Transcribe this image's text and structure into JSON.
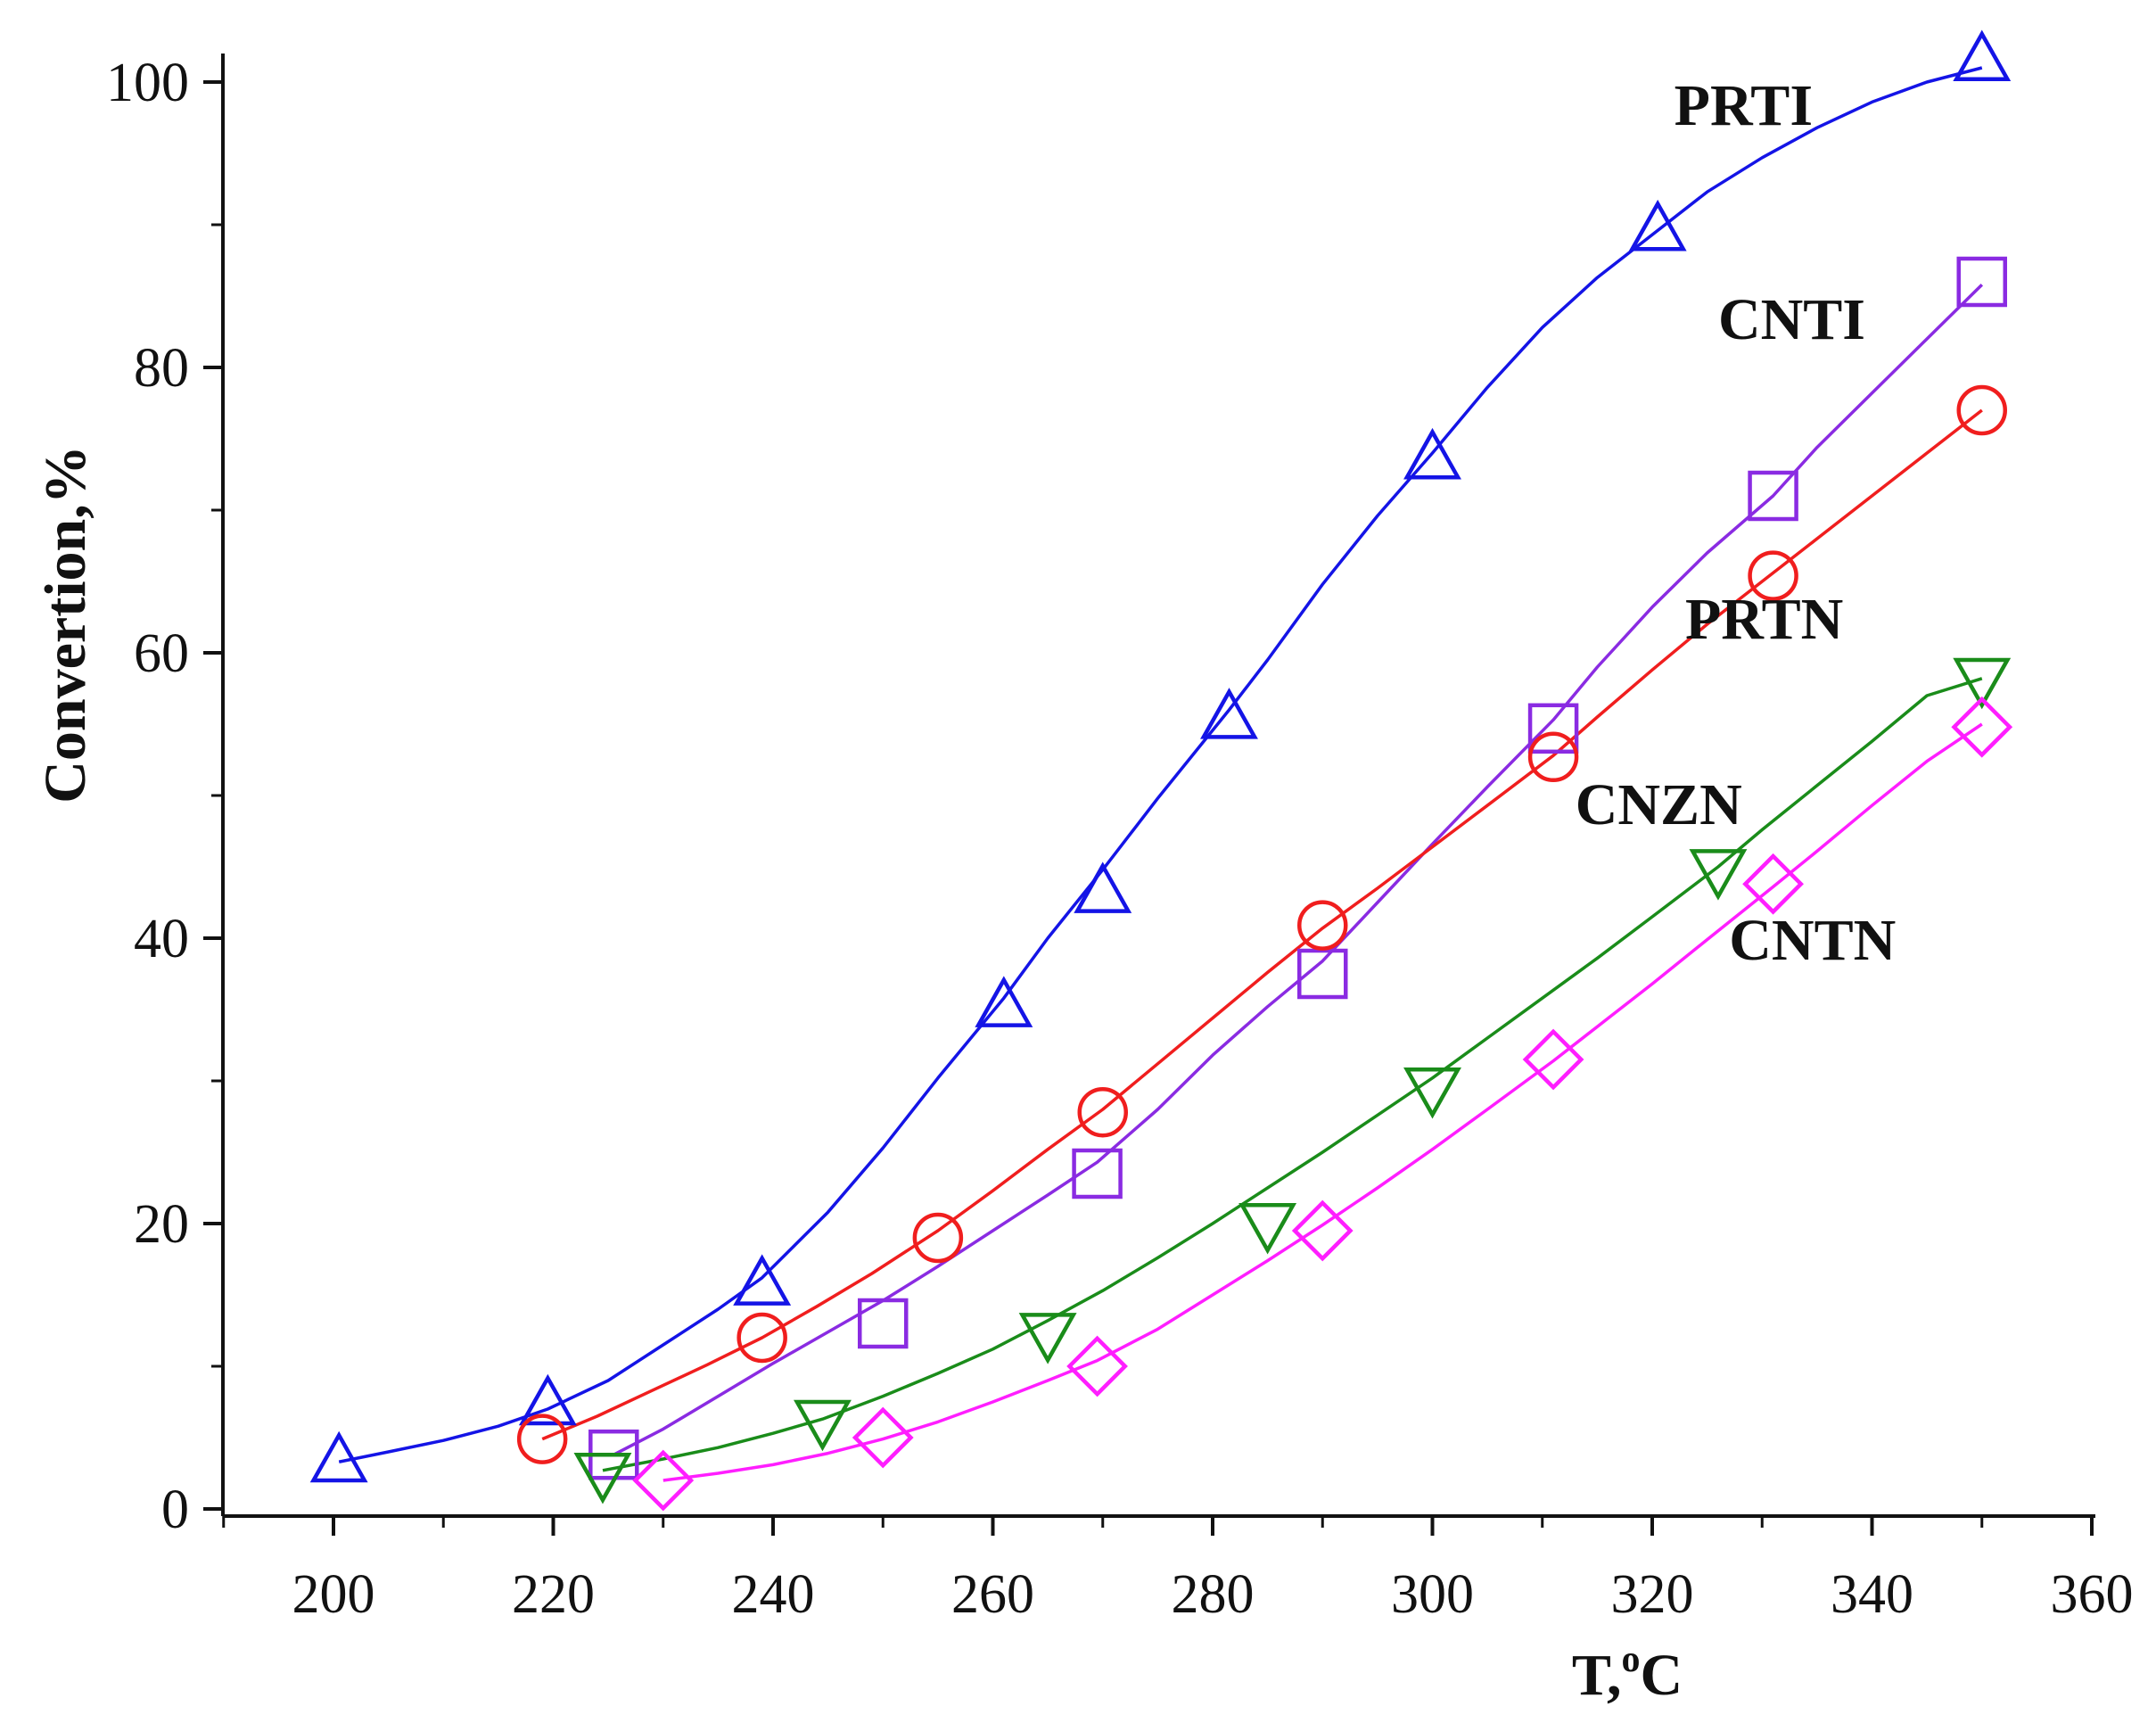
{
  "chart_data": {
    "type": "line",
    "title": "",
    "xlabel": "T,",
    "xlabel_sup": "o",
    "xlabel_unit": "C",
    "ylabel": "Convertion,%",
    "xlim": [
      190,
      360
    ],
    "ylim": [
      -2,
      105
    ],
    "x_ticks": [
      200,
      220,
      240,
      260,
      280,
      300,
      320,
      340,
      360
    ],
    "x_minor_ticks": [
      190,
      210,
      230,
      250,
      270,
      290,
      310,
      330,
      350
    ],
    "y_ticks": [
      0,
      20,
      40,
      60,
      80,
      100
    ],
    "y_minor_ticks": [
      10,
      30,
      50,
      70,
      90
    ],
    "grid": false,
    "series": [
      {
        "name": "PRTI",
        "color": "#1414e6",
        "marker": "triangle-up",
        "label_at": [
          322,
          97
        ],
        "points": [
          [
            200.5,
            3.3
          ],
          [
            219.5,
            7.3
          ],
          [
            239,
            15.7
          ],
          [
            261,
            35.2
          ],
          [
            270,
            43.2
          ],
          [
            281.5,
            55.4
          ],
          [
            300,
            73.6
          ],
          [
            320.5,
            89.6
          ],
          [
            350,
            101.5
          ]
        ],
        "curve": [
          [
            200.5,
            3.3
          ],
          [
            205,
            4.0
          ],
          [
            210,
            4.8
          ],
          [
            215,
            5.8
          ],
          [
            219.5,
            7.0
          ],
          [
            225,
            9.0
          ],
          [
            230,
            11.5
          ],
          [
            235,
            14.0
          ],
          [
            239,
            16.2
          ],
          [
            245,
            20.8
          ],
          [
            250,
            25.3
          ],
          [
            255,
            30.2
          ],
          [
            261,
            35.8
          ],
          [
            265,
            40.0
          ],
          [
            270,
            44.8
          ],
          [
            275,
            49.8
          ],
          [
            281.5,
            56.0
          ],
          [
            285,
            59.5
          ],
          [
            290,
            64.8
          ],
          [
            295,
            69.6
          ],
          [
            300,
            74.0
          ],
          [
            305,
            78.6
          ],
          [
            310,
            82.8
          ],
          [
            315,
            86.3
          ],
          [
            320.5,
            89.6
          ],
          [
            325,
            92.3
          ],
          [
            330,
            94.7
          ],
          [
            335,
            96.8
          ],
          [
            340,
            98.6
          ],
          [
            345,
            100.0
          ],
          [
            350,
            101.0
          ]
        ]
      },
      {
        "name": "CNTI",
        "color": "#8a2be2",
        "marker": "square",
        "label_at": [
          326,
          82
        ],
        "points": [
          [
            225.5,
            3.8
          ],
          [
            250,
            13.0
          ],
          [
            269.5,
            23.5
          ],
          [
            290,
            37.5
          ],
          [
            311,
            54.7
          ],
          [
            331,
            71.0
          ],
          [
            350,
            86.0
          ]
        ],
        "curve": [
          [
            225.5,
            3.8
          ],
          [
            230,
            5.6
          ],
          [
            235,
            7.9
          ],
          [
            240,
            10.2
          ],
          [
            245,
            12.4
          ],
          [
            250,
            14.6
          ],
          [
            255,
            17.0
          ],
          [
            260,
            19.5
          ],
          [
            265,
            22.0
          ],
          [
            269.5,
            24.3
          ],
          [
            275,
            28.0
          ],
          [
            280,
            31.8
          ],
          [
            285,
            35.2
          ],
          [
            290,
            38.4
          ],
          [
            295,
            42.5
          ],
          [
            300,
            46.6
          ],
          [
            305,
            50.6
          ],
          [
            311,
            55.3
          ],
          [
            315,
            59.0
          ],
          [
            320,
            63.2
          ],
          [
            325,
            67.0
          ],
          [
            331,
            71.0
          ],
          [
            335,
            74.4
          ],
          [
            340,
            78.2
          ],
          [
            345,
            82.0
          ],
          [
            350,
            85.8
          ]
        ]
      },
      {
        "name": "PRTN",
        "color": "#f01e1e",
        "marker": "circle",
        "label_at": [
          323,
          61
        ],
        "points": [
          [
            219,
            4.9
          ],
          [
            239,
            12.0
          ],
          [
            255,
            19.0
          ],
          [
            270,
            27.8
          ],
          [
            290,
            40.9
          ],
          [
            311,
            52.7
          ],
          [
            331,
            65.4
          ],
          [
            350,
            77.0
          ]
        ],
        "curve": [
          [
            219,
            4.9
          ],
          [
            224,
            6.5
          ],
          [
            229,
            8.3
          ],
          [
            234,
            10.1
          ],
          [
            239,
            12.0
          ],
          [
            244,
            14.2
          ],
          [
            249,
            16.5
          ],
          [
            255,
            19.5
          ],
          [
            260,
            22.3
          ],
          [
            265,
            25.2
          ],
          [
            270,
            28.0
          ],
          [
            275,
            31.2
          ],
          [
            280,
            34.4
          ],
          [
            285,
            37.6
          ],
          [
            290,
            40.7
          ],
          [
            295,
            43.5
          ],
          [
            300,
            46.4
          ],
          [
            305,
            49.3
          ],
          [
            311,
            52.8
          ],
          [
            315,
            55.5
          ],
          [
            320,
            58.8
          ],
          [
            325,
            62.0
          ],
          [
            331,
            65.6
          ],
          [
            335,
            68.0
          ],
          [
            340,
            71.0
          ],
          [
            345,
            74.0
          ],
          [
            350,
            77.0
          ]
        ]
      },
      {
        "name": "CNZN",
        "color": "#1a8c1a",
        "marker": "triangle-down",
        "label_at": [
          313,
          48
        ],
        "points": [
          [
            224.5,
            2.5
          ],
          [
            244.5,
            6.2
          ],
          [
            265,
            12.3
          ],
          [
            285,
            20.0
          ],
          [
            300,
            29.5
          ],
          [
            326,
            44.8
          ],
          [
            350,
            58.2
          ]
        ],
        "curve": [
          [
            224.5,
            2.7
          ],
          [
            230,
            3.5
          ],
          [
            235,
            4.3
          ],
          [
            240,
            5.3
          ],
          [
            244.5,
            6.3
          ],
          [
            250,
            7.9
          ],
          [
            255,
            9.5
          ],
          [
            260,
            11.2
          ],
          [
            265,
            13.2
          ],
          [
            270,
            15.3
          ],
          [
            275,
            17.6
          ],
          [
            280,
            20.0
          ],
          [
            285,
            22.5
          ],
          [
            290,
            25.0
          ],
          [
            295,
            27.6
          ],
          [
            300,
            30.2
          ],
          [
            305,
            33.0
          ],
          [
            310,
            35.8
          ],
          [
            315,
            38.6
          ],
          [
            320,
            41.5
          ],
          [
            326,
            45.0
          ],
          [
            330,
            47.6
          ],
          [
            335,
            50.7
          ],
          [
            340,
            53.8
          ],
          [
            345,
            57.0
          ],
          [
            350,
            58.2
          ]
        ]
      },
      {
        "name": "CNTN",
        "color": "#ff1eff",
        "marker": "diamond",
        "label_at": [
          327,
          38.5
        ],
        "points": [
          [
            230,
            2.0
          ],
          [
            250,
            5.0
          ],
          [
            269.5,
            10.0
          ],
          [
            290,
            19.5
          ],
          [
            311,
            31.5
          ],
          [
            331,
            43.8
          ],
          [
            350,
            54.8
          ]
        ],
        "curve": [
          [
            230,
            2.0
          ],
          [
            235,
            2.5
          ],
          [
            240,
            3.1
          ],
          [
            245,
            3.9
          ],
          [
            250,
            4.9
          ],
          [
            255,
            6.1
          ],
          [
            260,
            7.5
          ],
          [
            265,
            9.0
          ],
          [
            269.5,
            10.4
          ],
          [
            275,
            12.6
          ],
          [
            280,
            15.0
          ],
          [
            285,
            17.4
          ],
          [
            290,
            19.9
          ],
          [
            295,
            22.5
          ],
          [
            300,
            25.2
          ],
          [
            305,
            28.0
          ],
          [
            311,
            31.4
          ],
          [
            315,
            33.8
          ],
          [
            320,
            36.8
          ],
          [
            325,
            39.9
          ],
          [
            331,
            43.6
          ],
          [
            335,
            46.1
          ],
          [
            340,
            49.3
          ],
          [
            345,
            52.4
          ],
          [
            350,
            55.0
          ]
        ]
      }
    ]
  }
}
